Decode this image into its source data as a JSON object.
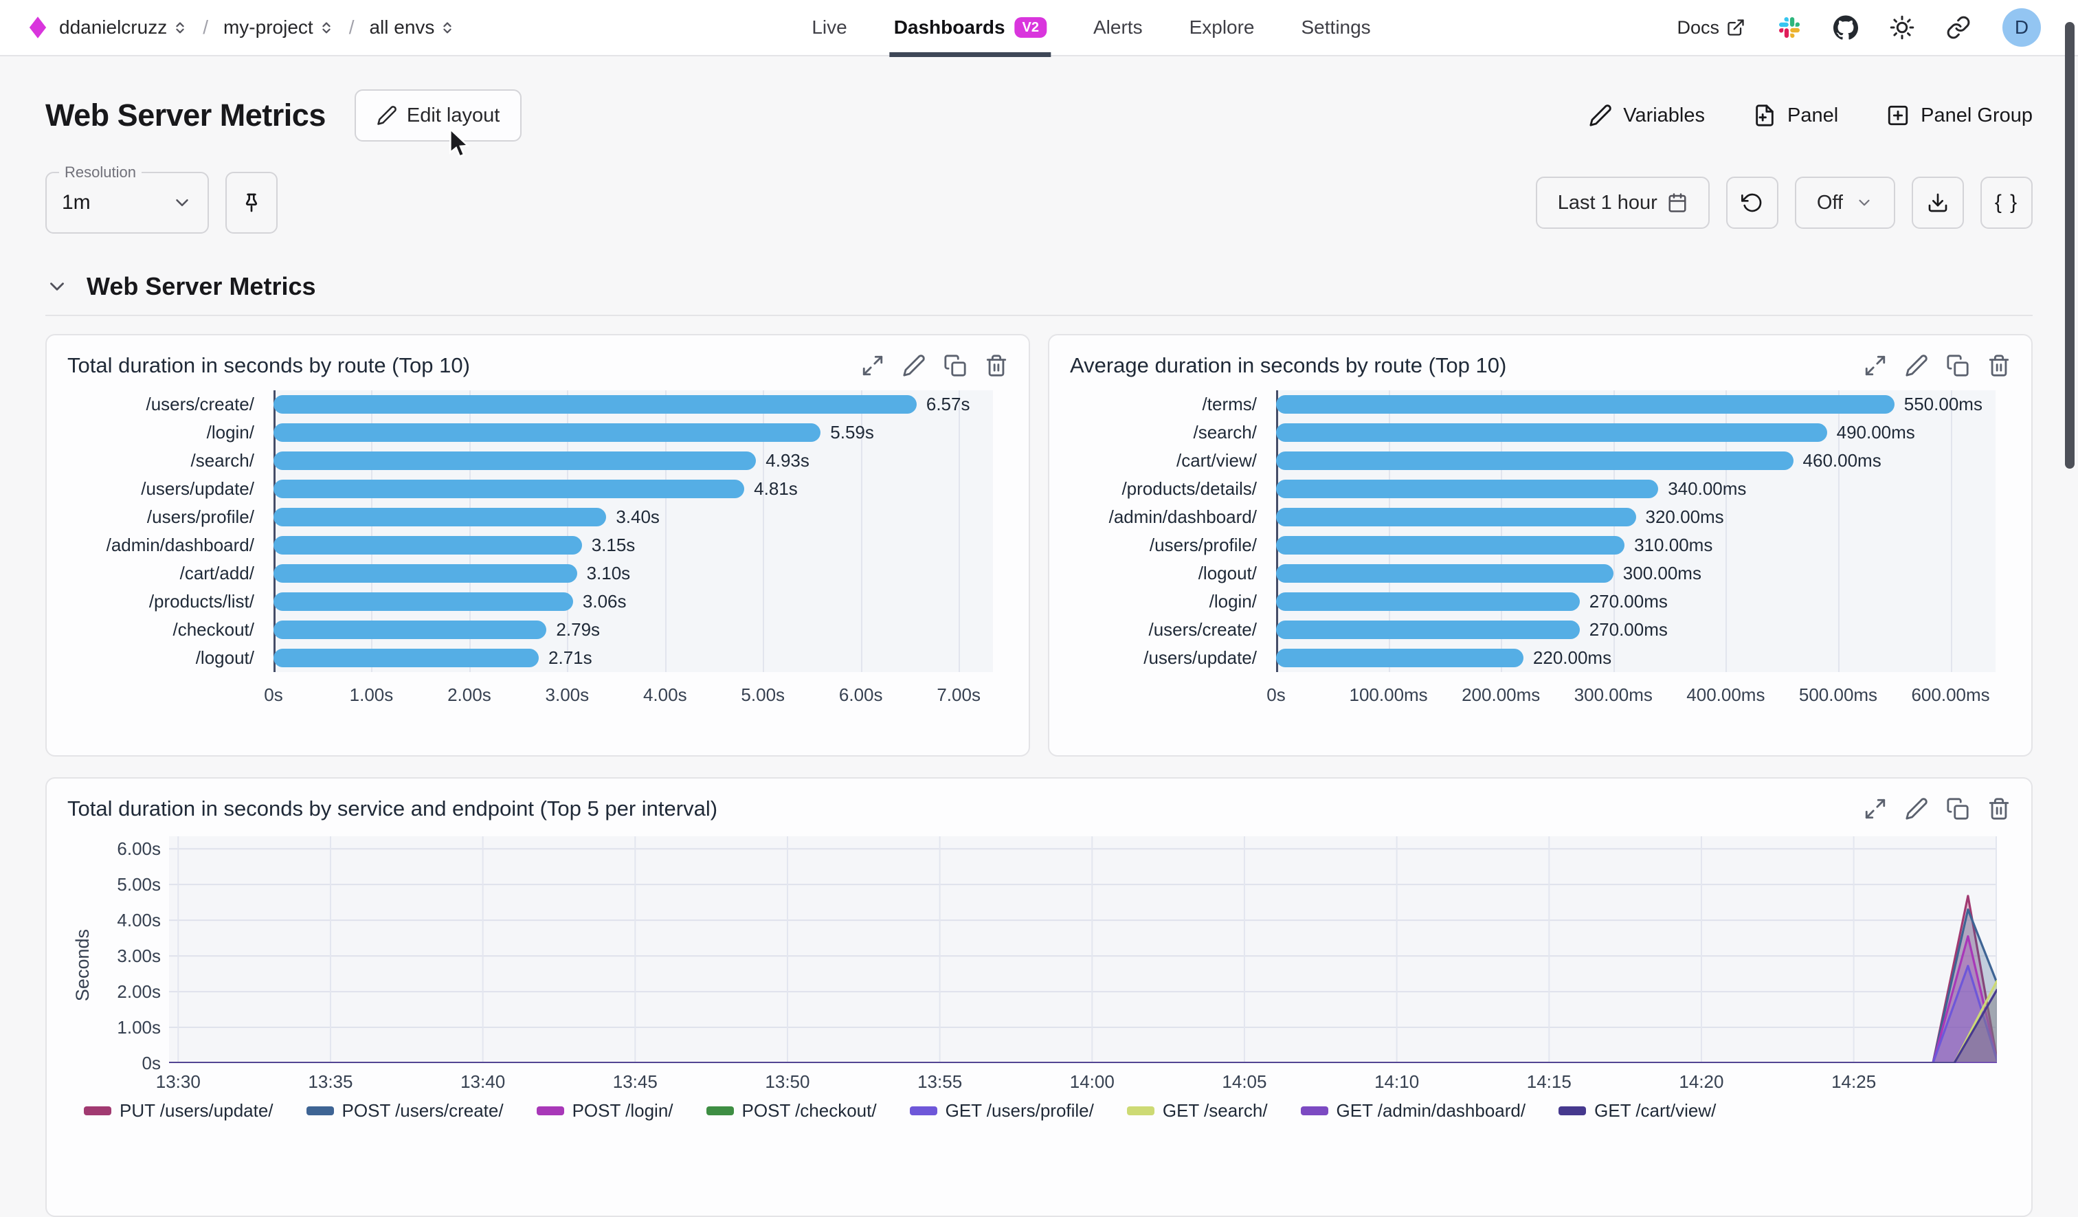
{
  "app": {
    "accent": "#d935dd",
    "tab_underline": "#3e4757",
    "bar_color": "#55aee5"
  },
  "nav": {
    "breadcrumb": {
      "org": "ddanielcruzz",
      "separator": "/",
      "project": "my-project",
      "env": "all envs"
    },
    "tabs": [
      {
        "label": "Live",
        "active": false
      },
      {
        "label": "Dashboards",
        "badge": "V2",
        "active": true
      },
      {
        "label": "Alerts",
        "active": false
      },
      {
        "label": "Explore",
        "active": false
      },
      {
        "label": "Settings",
        "active": false
      }
    ],
    "docs_label": "Docs",
    "avatar_initial": "D"
  },
  "header": {
    "title": "Web Server Metrics",
    "edit_layout_label": "Edit layout",
    "actions": [
      {
        "label": "Variables"
      },
      {
        "label": "Panel"
      },
      {
        "label": "Panel Group"
      }
    ]
  },
  "toolbar": {
    "resolution_label": "Resolution",
    "resolution_value": "1m",
    "time_range_label": "Last 1 hour",
    "auto_refresh_label": "Off",
    "code_button_label": "{ }"
  },
  "section": {
    "title": "Web Server Metrics"
  },
  "chart_data": [
    {
      "type": "bar",
      "orientation": "horizontal",
      "title": "Total duration in seconds by route (Top 10)",
      "unit": "seconds",
      "categories": [
        "/users/create/",
        "/login/",
        "/search/",
        "/users/update/",
        "/users/profile/",
        "/admin/dashboard/",
        "/cart/add/",
        "/products/list/",
        "/checkout/",
        "/logout/"
      ],
      "values": [
        6.57,
        5.59,
        4.93,
        4.81,
        3.4,
        3.15,
        3.1,
        3.06,
        2.79,
        2.71
      ],
      "value_labels": [
        "6.57s",
        "5.59s",
        "4.93s",
        "4.81s",
        "3.40s",
        "3.15s",
        "3.10s",
        "3.06s",
        "2.79s",
        "2.71s"
      ],
      "xlim": [
        0,
        7.35
      ],
      "ticks": [
        {
          "value": 0,
          "label": "0s"
        },
        {
          "value": 1,
          "label": "1.00s"
        },
        {
          "value": 2,
          "label": "2.00s"
        },
        {
          "value": 3,
          "label": "3.00s"
        },
        {
          "value": 4,
          "label": "4.00s"
        },
        {
          "value": 5,
          "label": "5.00s"
        },
        {
          "value": 6,
          "label": "6.00s"
        },
        {
          "value": 7,
          "label": "7.00s"
        }
      ],
      "grid": true
    },
    {
      "type": "bar",
      "orientation": "horizontal",
      "title": "Average duration in seconds by route (Top 10)",
      "unit": "milliseconds",
      "categories": [
        "/terms/",
        "/search/",
        "/cart/view/",
        "/products/details/",
        "/admin/dashboard/",
        "/users/profile/",
        "/logout/",
        "/login/",
        "/users/create/",
        "/users/update/"
      ],
      "values": [
        550,
        490,
        460,
        340,
        320,
        310,
        300,
        270,
        270,
        220
      ],
      "value_labels": [
        "550.00ms",
        "490.00ms",
        "460.00ms",
        "340.00ms",
        "320.00ms",
        "310.00ms",
        "300.00ms",
        "270.00ms",
        "270.00ms",
        "220.00ms"
      ],
      "xlim": [
        0,
        640
      ],
      "ticks": [
        {
          "value": 0,
          "label": "0s"
        },
        {
          "value": 100,
          "label": "100.00ms"
        },
        {
          "value": 200,
          "label": "200.00ms"
        },
        {
          "value": 300,
          "label": "300.00ms"
        },
        {
          "value": 400,
          "label": "400.00ms"
        },
        {
          "value": 500,
          "label": "500.00ms"
        },
        {
          "value": 600,
          "label": "600.00ms"
        }
      ],
      "grid": true
    },
    {
      "type": "area",
      "title": "Total duration in seconds by service and endpoint (Top 5 per interval)",
      "ylabel": "Seconds",
      "ylim": [
        0,
        6.35
      ],
      "yticks": [
        {
          "value": 0,
          "label": "0s"
        },
        {
          "value": 1,
          "label": "1.00s"
        },
        {
          "value": 2,
          "label": "2.00s"
        },
        {
          "value": 3,
          "label": "3.00s"
        },
        {
          "value": 4,
          "label": "4.00s"
        },
        {
          "value": 5,
          "label": "5.00s"
        },
        {
          "value": 6,
          "label": "6.00s"
        }
      ],
      "x_base_time": "13:30",
      "x_domain_minutes": [
        -0.3,
        59.7
      ],
      "xticks": [
        {
          "minute": 0,
          "label": "13:30"
        },
        {
          "minute": 5,
          "label": "13:35"
        },
        {
          "minute": 10,
          "label": "13:40"
        },
        {
          "minute": 15,
          "label": "13:45"
        },
        {
          "minute": 20,
          "label": "13:50"
        },
        {
          "minute": 25,
          "label": "13:55"
        },
        {
          "minute": 30,
          "label": "14:00"
        },
        {
          "minute": 35,
          "label": "14:05"
        },
        {
          "minute": 40,
          "label": "14:10"
        },
        {
          "minute": 45,
          "label": "14:15"
        },
        {
          "minute": 50,
          "label": "14:20"
        },
        {
          "minute": 55,
          "label": "14:25"
        }
      ],
      "legend_position": "bottom",
      "series": [
        {
          "name": "PUT /users/update/",
          "color": "#a13a71",
          "points": [
            [
              -0.3,
              0
            ],
            [
              57.6,
              0
            ],
            [
              58.75,
              4.68
            ],
            [
              59.7,
              0.12
            ]
          ]
        },
        {
          "name": "POST /users/create/",
          "color": "#3e6494",
          "points": [
            [
              -0.3,
              0
            ],
            [
              57.6,
              0
            ],
            [
              58.75,
              4.3
            ],
            [
              59.7,
              2.25
            ]
          ]
        },
        {
          "name": "POST /login/",
          "color": "#a838b8",
          "points": [
            [
              -0.3,
              0
            ],
            [
              57.6,
              0
            ],
            [
              58.75,
              3.55
            ],
            [
              59.7,
              0.08
            ]
          ]
        },
        {
          "name": "POST /checkout/",
          "color": "#3e8e43",
          "points": [
            [
              -0.3,
              0
            ],
            [
              59.7,
              0
            ]
          ]
        },
        {
          "name": "GET /users/profile/",
          "color": "#6e57d9",
          "points": [
            [
              -0.3,
              0
            ],
            [
              57.6,
              0
            ],
            [
              58.75,
              2.72
            ],
            [
              59.7,
              0.08
            ]
          ]
        },
        {
          "name": "GET /search/",
          "color": "#cdda74",
          "points": [
            [
              -0.3,
              0
            ],
            [
              58.3,
              0
            ],
            [
              59.7,
              2.3
            ]
          ]
        },
        {
          "name": "GET /admin/dashboard/",
          "color": "#7c4ac2",
          "points": [
            [
              -0.3,
              0
            ],
            [
              59.7,
              0
            ]
          ]
        },
        {
          "name": "GET /cart/view/",
          "color": "#46398e",
          "points": [
            [
              -0.3,
              0
            ],
            [
              58.3,
              0
            ],
            [
              59.7,
              2.05
            ]
          ]
        }
      ]
    }
  ]
}
